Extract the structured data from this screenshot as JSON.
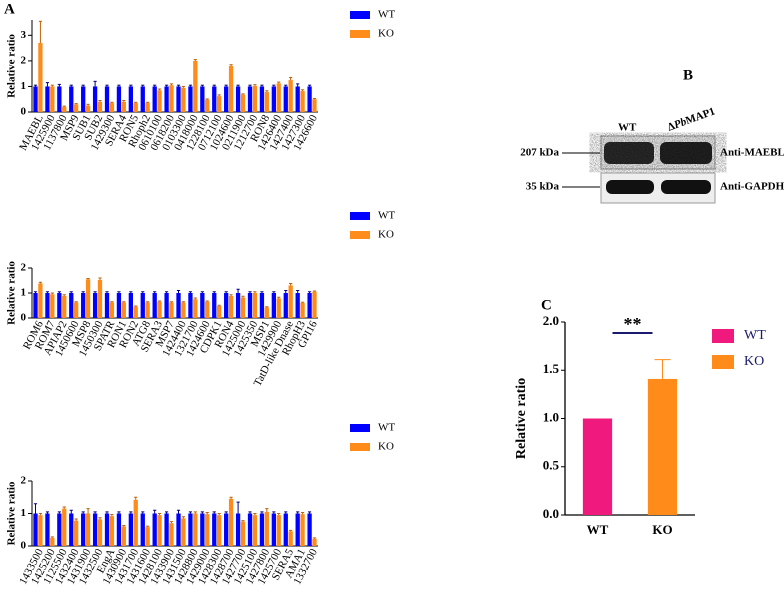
{
  "panel_labels": [
    "A",
    "B",
    "C"
  ],
  "chart_data": [
    {
      "type": "bar",
      "y_label": "Relative ratio",
      "ylim": [
        0,
        3.6
      ],
      "yticks": [
        0,
        1,
        2,
        3
      ],
      "legend": "right",
      "categories": [
        "MAEBL",
        "1425900",
        "1137800",
        "MSP9",
        "SUB1",
        "SUB2",
        "1429300",
        "SERA4",
        "RON5",
        "Rhoph2",
        "0610100",
        "0618200",
        "0103300",
        "0418000",
        "1228100",
        "0712100",
        "1024600",
        "0211900",
        "1212700",
        "RON8",
        "1426400",
        "1427400",
        "1427300",
        "1426600"
      ],
      "series": [
        {
          "name": "WT",
          "color": "#0000ff",
          "values": [
            1,
            1,
            1,
            1,
            1,
            1,
            1,
            1,
            1,
            1,
            1,
            1,
            1,
            1,
            1,
            1,
            1,
            1,
            1,
            1,
            1,
            1,
            1,
            1
          ],
          "errors": [
            0.05,
            0.15,
            0.08,
            0.05,
            0.05,
            0.2,
            0.05,
            0.05,
            0.05,
            0.05,
            0.05,
            0.05,
            0.05,
            0.05,
            0.05,
            0.05,
            0.05,
            0.05,
            0.05,
            0.05,
            0.05,
            0.05,
            0.1,
            0.05
          ]
        },
        {
          "name": "KO",
          "color": "#ff8c1a",
          "values": [
            2.7,
            1.0,
            0.2,
            0.3,
            0.25,
            0.4,
            0.35,
            0.4,
            0.35,
            0.35,
            0.85,
            1.05,
            0.95,
            2.0,
            0.48,
            0.62,
            1.8,
            0.68,
            1.02,
            0.78,
            1.12,
            1.25,
            0.82,
            0.5
          ],
          "errors": [
            0.85,
            0.05,
            0.03,
            0.03,
            0.05,
            0.05,
            0.03,
            0.05,
            0.03,
            0.03,
            0.05,
            0.05,
            0.05,
            0.05,
            0.03,
            0.05,
            0.05,
            0.03,
            0.05,
            0.05,
            0.05,
            0.1,
            0.05,
            0.03
          ]
        }
      ]
    },
    {
      "type": "bar",
      "y_label": "Relative ratio",
      "ylim": [
        0,
        2
      ],
      "yticks": [
        0,
        1,
        2
      ],
      "legend": "right",
      "categories": [
        "ROM6",
        "ROM7",
        "APIAP2",
        "1450600",
        "MSP8",
        "1450300",
        "SPATR",
        "RON1",
        "RON2",
        "ATG8",
        "SERA3",
        "MSP7",
        "1424400",
        "1321700",
        "1424600",
        "CDPK1",
        "RON4",
        "1425000",
        "1425350",
        "MSP1",
        "1429900",
        "TatD-like Dnase",
        "RhopH3",
        "GPI16"
      ],
      "series": [
        {
          "name": "WT",
          "color": "#0000ff",
          "values": [
            1,
            1,
            1,
            1,
            1,
            1,
            1,
            1,
            1,
            1,
            1,
            1,
            1,
            1,
            1,
            1,
            1,
            1,
            1,
            1,
            1,
            1,
            1,
            1
          ],
          "errors": [
            0.05,
            0.05,
            0.05,
            0.05,
            0.05,
            0.05,
            0.05,
            0.05,
            0.05,
            0.05,
            0.05,
            0.05,
            0.1,
            0.05,
            0.05,
            0.05,
            0.05,
            0.15,
            0.05,
            0.05,
            0.05,
            0.1,
            0.1,
            0.05
          ]
        },
        {
          "name": "KO",
          "color": "#ff8c1a",
          "values": [
            1.38,
            0.95,
            0.88,
            0.62,
            1.55,
            1.52,
            0.62,
            0.62,
            0.45,
            0.62,
            0.65,
            0.62,
            0.62,
            0.75,
            0.65,
            0.48,
            0.88,
            0.82,
            1.0,
            0.42,
            0.78,
            1.3,
            0.6,
            1.05
          ],
          "errors": [
            0.05,
            0.05,
            0.05,
            0.03,
            0.03,
            0.08,
            0.03,
            0.03,
            0.03,
            0.03,
            0.03,
            0.03,
            0.03,
            0.05,
            0.03,
            0.03,
            0.05,
            0.05,
            0.05,
            0.03,
            0.05,
            0.08,
            0.03,
            0.03
          ]
        }
      ]
    },
    {
      "type": "bar",
      "y_label": "Relative ratio",
      "ylim": [
        0,
        2
      ],
      "yticks": [
        0,
        1,
        2
      ],
      "legend": "right",
      "categories": [
        "1433500",
        "1425200",
        "1125500",
        "1432400",
        "1431900",
        "1432500",
        "EngA",
        "1430900",
        "1431700",
        "1431600",
        "1428100",
        "1433900",
        "1431500",
        "1428800",
        "1429000",
        "1428300",
        "1428700",
        "1427700",
        "1425100",
        "1427800",
        "1425700",
        "SERA5",
        "AMA1",
        "1332700"
      ],
      "series": [
        {
          "name": "WT",
          "color": "#0000ff",
          "values": [
            1,
            1,
            1,
            1,
            1,
            1,
            1,
            1,
            1,
            1,
            1,
            1,
            1,
            1,
            1,
            1,
            1,
            1,
            1,
            1,
            1,
            1,
            1,
            1
          ],
          "errors": [
            0.3,
            0.05,
            0.05,
            0.1,
            0.05,
            0.05,
            0.05,
            0.05,
            0.05,
            0.05,
            0.1,
            0.05,
            0.1,
            0.05,
            0.05,
            0.05,
            0.05,
            0.35,
            0.05,
            0.05,
            0.05,
            0.05,
            0.05,
            0.05
          ]
        },
        {
          "name": "KO",
          "color": "#ff8c1a",
          "values": [
            0.95,
            0.25,
            1.15,
            0.78,
            1.0,
            0.82,
            0.92,
            0.6,
            1.42,
            0.58,
            0.95,
            0.7,
            0.85,
            1.0,
            0.98,
            0.95,
            1.45,
            0.75,
            0.95,
            1.05,
            0.95,
            0.45,
            0.98,
            0.22
          ],
          "errors": [
            0.05,
            0.03,
            0.05,
            0.05,
            0.15,
            0.05,
            0.05,
            0.03,
            0.08,
            0.03,
            0.05,
            0.05,
            0.05,
            0.05,
            0.05,
            0.05,
            0.05,
            0.03,
            0.05,
            0.1,
            0.05,
            0.03,
            0.05,
            0.03
          ]
        }
      ]
    },
    {
      "type": "bar",
      "y_label": "Relative ratio",
      "annotation": "**",
      "legend": "right",
      "ylim": [
        0,
        2.0
      ],
      "yticks": [
        {
          "value": 0,
          "label": "0.0"
        },
        {
          "value": 0.5,
          "label": "0.5"
        },
        {
          "value": 1,
          "label": "1.0"
        },
        {
          "value": 1.5,
          "label": "1.5"
        },
        {
          "value": 2,
          "label": "2.0"
        }
      ],
      "categories": [
        "WT",
        "KO"
      ],
      "colors": [
        "#f0197d",
        "#ff8c1a"
      ],
      "values": [
        1.0,
        1.41
      ],
      "errors": [
        0,
        0.2
      ]
    }
  ],
  "blot": {
    "lanes": [
      "WT",
      {
        "prefix": "Δ",
        "italic": "Pb",
        "suffix": "MAP1"
      }
    ],
    "markers": [
      "207 kDa",
      "35 kDa"
    ],
    "antibodies": [
      "Anti-MAEBL",
      "Anti-GAPDH"
    ]
  }
}
